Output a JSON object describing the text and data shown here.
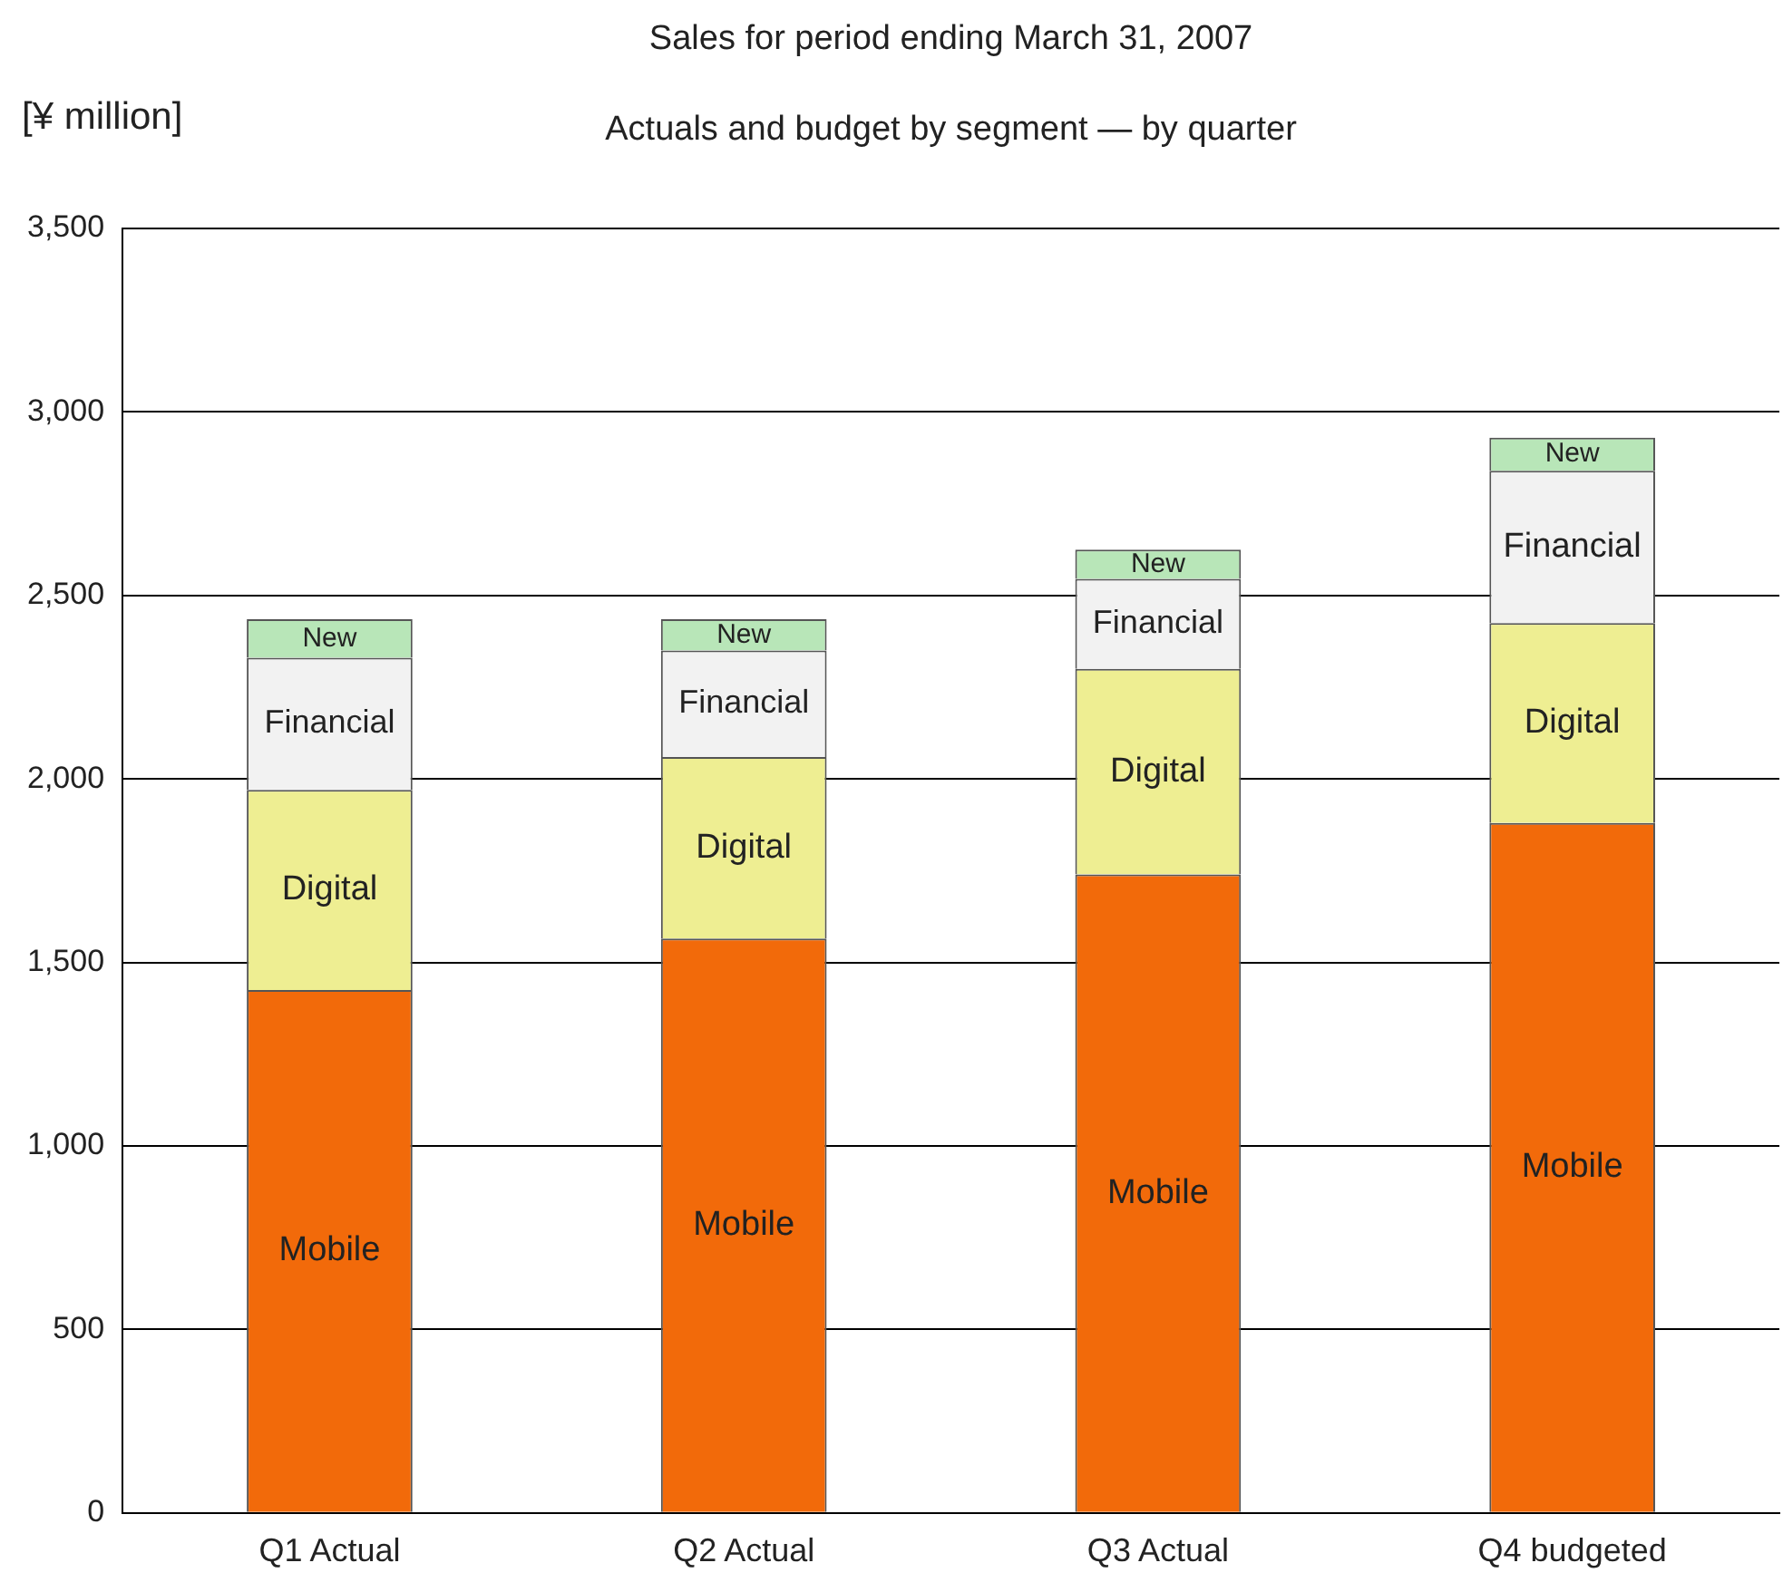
{
  "chart_data": {
    "type": "bar",
    "title": "Sales for period ending March 31, 2007",
    "subtitle": "Actuals and budget by segment — by quarter",
    "ylabel": "[¥ million]",
    "categories": [
      "Q1 Actual",
      "Q2 Actual",
      "Q3 Actual",
      "Q4 budgeted"
    ],
    "stacked": true,
    "series": [
      {
        "name": "Mobile",
        "color": "#f26a0a",
        "values": [
          1425,
          1565,
          1740,
          1880
        ]
      },
      {
        "name": "Digital",
        "color": "#eeee92",
        "values": [
          545,
          495,
          560,
          545
        ]
      },
      {
        "name": "Financial",
        "color": "#f2f2f2",
        "values": [
          360,
          290,
          245,
          415
        ]
      },
      {
        "name": "New",
        "color": "#b8e6b8",
        "values": [
          105,
          85,
          80,
          90
        ]
      }
    ],
    "ylim": [
      0,
      3500
    ],
    "yticks": [
      0,
      500,
      {
        "value": 1000,
        "label": "1,000"
      },
      {
        "value": 1500,
        "label": "1,500"
      },
      {
        "value": 2000,
        "label": "2,000"
      },
      {
        "value": 2500,
        "label": "2,500"
      },
      {
        "value": 3000,
        "label": "3,000"
      },
      {
        "value": 3500,
        "label": "3,500"
      }
    ],
    "grid": "y",
    "legend": false
  }
}
